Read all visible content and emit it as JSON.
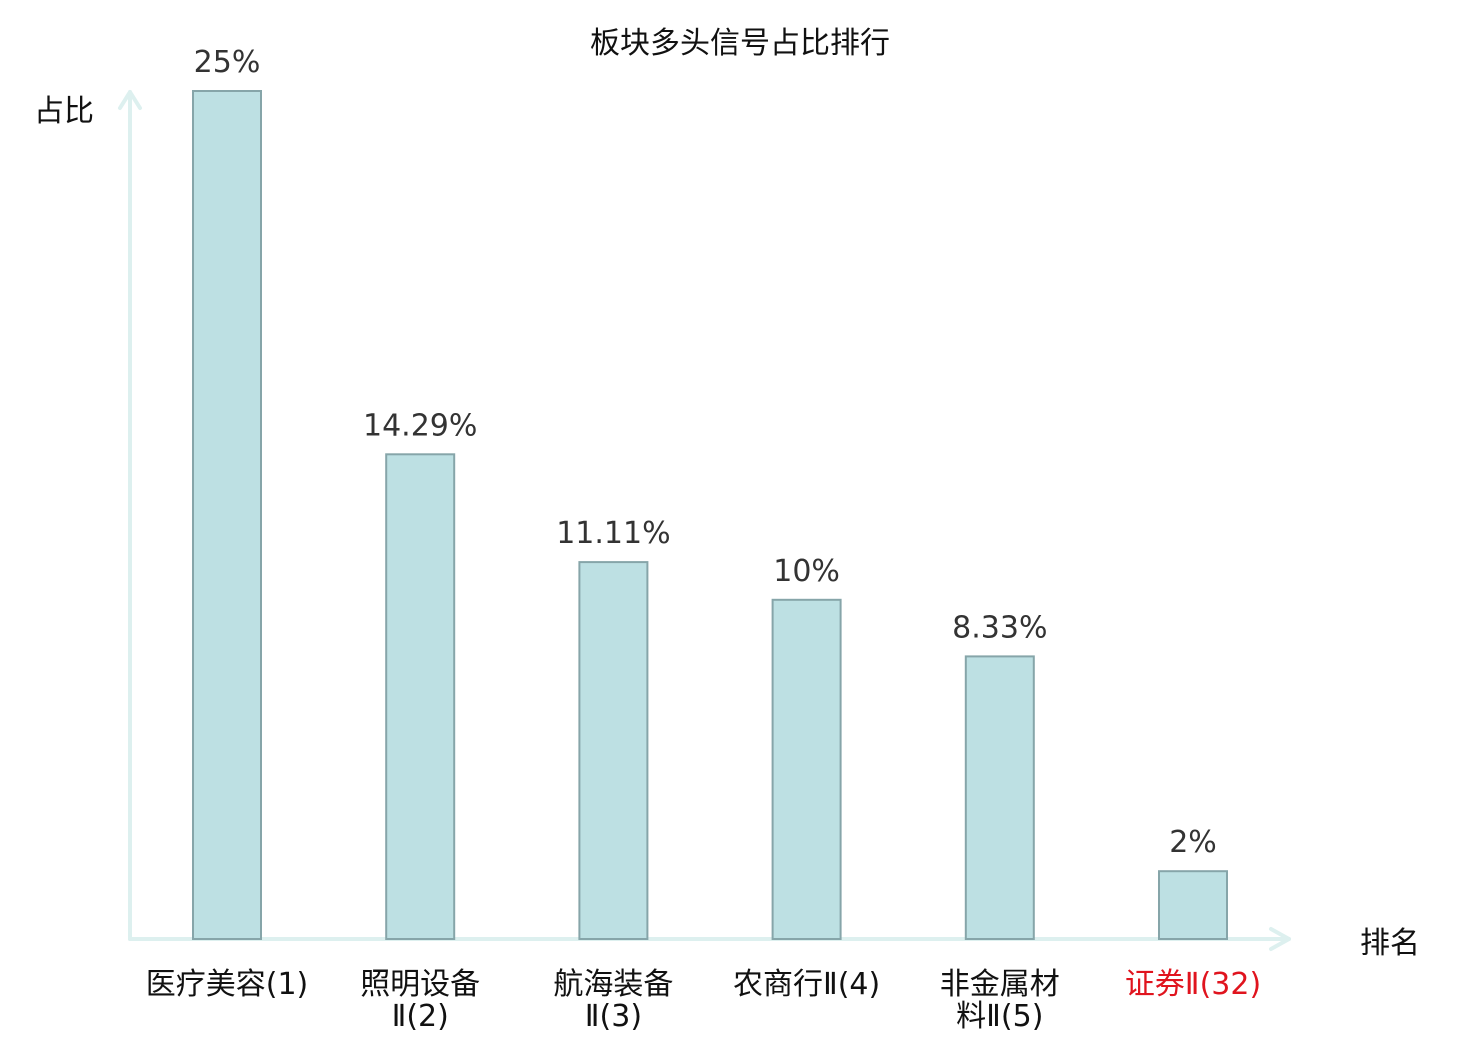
{
  "chart_data": {
    "type": "bar",
    "title": "板块多头信号占比排行",
    "ylabel": "占比",
    "xlabel": "排名",
    "categories": [
      [
        "医疗美容(1)"
      ],
      [
        "照明设备",
        "Ⅱ(2)"
      ],
      [
        "航海装备",
        "Ⅱ(3)"
      ],
      [
        "农商行Ⅱ(4)"
      ],
      [
        "非金属材",
        "料Ⅱ(5)"
      ],
      [
        "证券Ⅱ(32)"
      ]
    ],
    "values": [
      25,
      14.29,
      11.11,
      10,
      8.33,
      2
    ],
    "value_labels": [
      "25%",
      "14.29%",
      "11.11%",
      "10%",
      "8.33%",
      "2%"
    ],
    "highlight_index": 5,
    "ylim": [
      0,
      25
    ],
    "grid": false,
    "colors": {
      "bar_fill": "#bde0e3",
      "bar_stroke": "#86a5a9",
      "axis": "#ddf0ef",
      "highlight_text": "#e0141e",
      "text": "#111111",
      "value_text": "#333333"
    }
  }
}
